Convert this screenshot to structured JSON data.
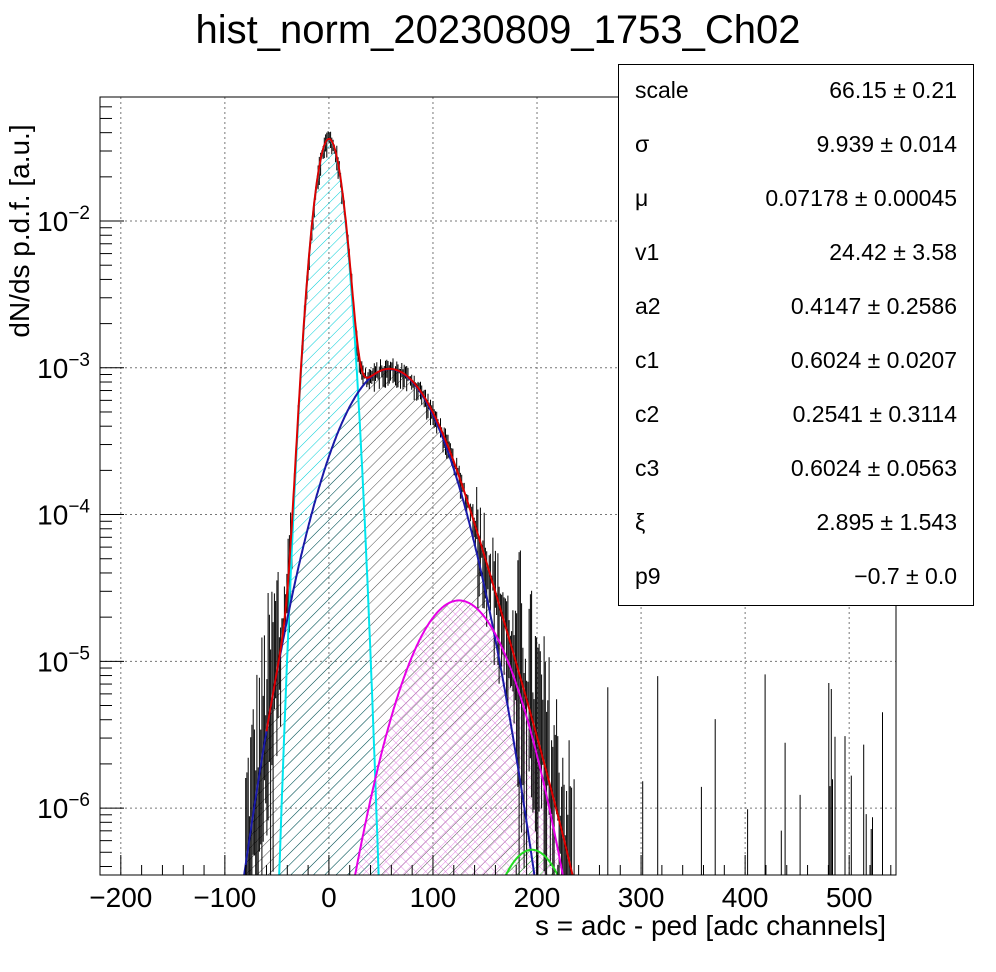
{
  "title": "hist_norm_20230809_1753_Ch02",
  "chart_data": {
    "type": "histogram-fit",
    "title": "hist_norm_20230809_1753_Ch02",
    "xlabel": "s = adc - ped [adc channels]",
    "ylabel": "dN/ds p.d.f. [a.u.]",
    "xlim": [
      -220,
      545
    ],
    "ylim": [
      3.5e-07,
      0.07
    ],
    "yscale": "log",
    "grid": true,
    "x_ticks": [
      "−200",
      "−100",
      "0",
      "100",
      "200",
      "300",
      "400",
      "500"
    ],
    "y_ticks": [
      {
        "base": "10",
        "exp": "−2",
        "value": 0.01
      },
      {
        "base": "10",
        "exp": "−3",
        "value": 0.001
      },
      {
        "base": "10",
        "exp": "−4",
        "value": 0.0001
      },
      {
        "base": "10",
        "exp": "−5",
        "value": 1e-05
      },
      {
        "base": "10",
        "exp": "−6",
        "value": 1e-06
      }
    ],
    "components": [
      {
        "color": "#00e5ee",
        "hatch": "cyan",
        "peak_x": 0,
        "peak_y": 0.036,
        "sigma": 9.94
      },
      {
        "color": "#1a1aa8",
        "hatch": "black",
        "peak_x": 58,
        "peak_y": 0.00098,
        "sigma": 35
      },
      {
        "color": "#e600e6",
        "hatch": "magenta",
        "peak_x": 125,
        "peak_y": 2.6e-05,
        "sigma": 34
      },
      {
        "color": "#22dd22",
        "hatch": "green",
        "peak_x": 195,
        "peak_y": 5.2e-07,
        "sigma": 28
      }
    ],
    "total_color": "#dd0000"
  },
  "stats": {
    "rows": [
      {
        "name": "scale",
        "value": "66.15 ± 0.21"
      },
      {
        "name": "σ",
        "value": "9.939 ± 0.014"
      },
      {
        "name": "μ",
        "value": "0.07178 ± 0.00045"
      },
      {
        "name": "v1",
        "value": "24.42 ± 3.58"
      },
      {
        "name": "a2",
        "value": "0.4147 ± 0.2586"
      },
      {
        "name": "c1",
        "value": "0.6024 ± 0.0207"
      },
      {
        "name": "c2",
        "value": "0.2541 ± 0.3114"
      },
      {
        "name": "c3",
        "value": "0.6024 ± 0.0563"
      },
      {
        "name": "ξ",
        "value": "2.895 ± 1.543"
      },
      {
        "name": "p9",
        "value": "−0.7 ± 0.0"
      }
    ]
  }
}
